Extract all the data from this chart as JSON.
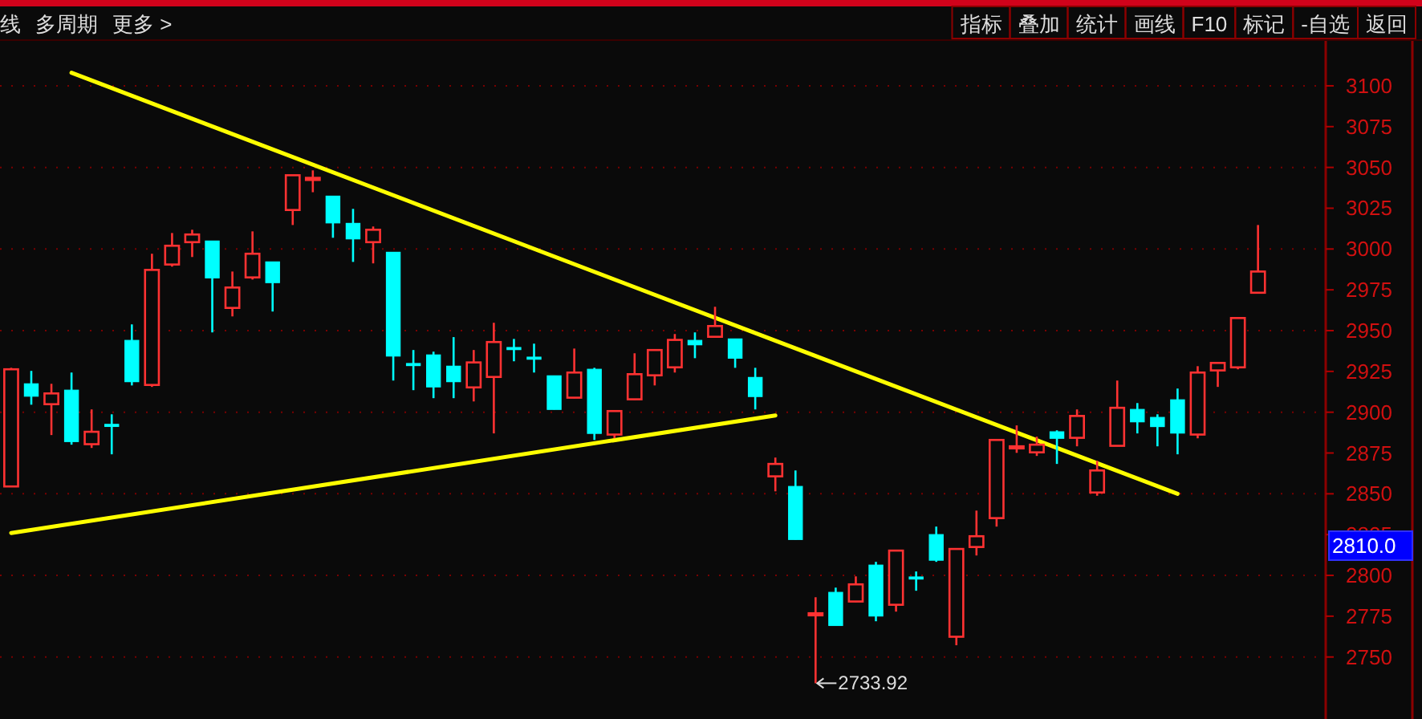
{
  "chart_data": {
    "type": "candlestick",
    "categories": [
      null,
      null,
      null,
      null,
      null,
      null,
      null,
      null,
      null,
      null,
      null,
      null,
      null,
      null,
      null,
      null,
      null,
      null,
      null,
      null,
      null,
      null,
      null,
      null,
      null,
      null,
      null,
      null,
      null,
      null,
      null,
      null,
      null,
      null,
      null,
      null,
      null,
      null,
      null,
      null,
      null,
      null,
      null,
      null,
      null,
      null,
      null,
      null,
      null,
      null,
      null,
      null,
      null,
      null,
      null,
      null,
      null,
      null,
      null,
      null,
      null,
      null,
      null
    ],
    "ohlc": [
      [
        2854.5,
        2927.2,
        2854.5,
        2926.3
      ],
      [
        2917.4,
        2925.3,
        2904.6,
        2909.8
      ],
      [
        2904.9,
        2917.4,
        2886.0,
        2911.5
      ],
      [
        2913.5,
        2924.3,
        2880.1,
        2882.0
      ],
      [
        2880.4,
        2901.7,
        2878.1,
        2888.0
      ],
      [
        2891.9,
        2898.7,
        2874.2,
        2891.5
      ],
      [
        2944.0,
        2953.8,
        2916.4,
        2918.7
      ],
      [
        2916.7,
        2997.1,
        2915.5,
        2987.2
      ],
      [
        2990.5,
        3009.8,
        2989.2,
        3002.0
      ],
      [
        3004.2,
        3011.8,
        2995.1,
        3008.9
      ],
      [
        3004.9,
        3004.9,
        2948.9,
        2982.3
      ],
      [
        2963.9,
        2986.2,
        2958.7,
        2976.4
      ],
      [
        2982.6,
        3010.8,
        2981.3,
        2997.1
      ],
      [
        2992.1,
        2992.1,
        2961.7,
        2979.4
      ],
      [
        3023.9,
        3045.2,
        3014.7,
        3045.2
      ],
      [
        3043.4,
        3048.2,
        3034.8,
        3043.6
      ],
      [
        3032.4,
        3032.4,
        3006.9,
        3016.0
      ],
      [
        3015.7,
        3024.6,
        2992.1,
        3006.2
      ],
      [
        3004.2,
        3013.8,
        2991.2,
        3011.8
      ],
      [
        2998.0,
        2998.0,
        2919.4,
        2934.4
      ],
      [
        2929.2,
        2938.1,
        2913.5,
        2929.0
      ],
      [
        2935.1,
        2937.1,
        2908.6,
        2915.5
      ],
      [
        2928.2,
        2946.0,
        2908.6,
        2918.7
      ],
      [
        2915.2,
        2938.1,
        2906.6,
        2930.5
      ],
      [
        2921.6,
        2954.8,
        2887.0,
        2943.0
      ],
      [
        2939.0,
        2944.9,
        2931.2,
        2938.8
      ],
      [
        2933.1,
        2942.0,
        2924.3,
        2932.9
      ],
      [
        2922.3,
        2922.3,
        2901.7,
        2901.7
      ],
      [
        2908.9,
        2939.0,
        2908.6,
        2924.3
      ],
      [
        2926.3,
        2927.2,
        2883.0,
        2887.0
      ],
      [
        2886.3,
        2900.7,
        2884.0,
        2900.7
      ],
      [
        2907.9,
        2936.1,
        2907.6,
        2923.3
      ],
      [
        2922.6,
        2938.1,
        2916.4,
        2938.1
      ],
      [
        2927.5,
        2947.9,
        2924.3,
        2944.3
      ],
      [
        2944.0,
        2948.9,
        2933.1,
        2941.3
      ],
      [
        2946.2,
        2964.6,
        2945.9,
        2952.8
      ],
      [
        2944.9,
        2944.9,
        2927.2,
        2933.1
      ],
      [
        2921.3,
        2927.2,
        2901.7,
        2909.6
      ],
      [
        2860.7,
        2872.2,
        2851.5,
        2868.3
      ],
      [
        2854.5,
        2864.3,
        2822.0,
        2822.0
      ],
      [
        2776.6,
        2786.6,
        2733.92,
        2776.8
      ],
      [
        2789.6,
        2792.5,
        2769.3,
        2769.3
      ],
      [
        2784.0,
        2799.4,
        2783.7,
        2794.5
      ],
      [
        2806.3,
        2808.3,
        2771.9,
        2775.1
      ],
      [
        2782.0,
        2815.2,
        2777.8,
        2815.2
      ],
      [
        2798.4,
        2802.4,
        2790.6,
        2798.2
      ],
      [
        2825.0,
        2829.9,
        2808.3,
        2809.3
      ],
      [
        2762.4,
        2816.2,
        2757.2,
        2816.2
      ],
      [
        2817.4,
        2839.7,
        2812.2,
        2824.0
      ],
      [
        2835.1,
        2883.0,
        2829.9,
        2883.0
      ],
      [
        2878.9,
        2891.9,
        2875.1,
        2879.1
      ],
      [
        2875.4,
        2885.0,
        2873.2,
        2880.1
      ],
      [
        2888.0,
        2888.9,
        2868.3,
        2884.0
      ],
      [
        2884.3,
        2901.7,
        2879.1,
        2897.7
      ],
      [
        2850.8,
        2870.2,
        2848.8,
        2864.3
      ],
      [
        2879.4,
        2919.4,
        2879.4,
        2902.7
      ],
      [
        2901.7,
        2905.6,
        2887.0,
        2894.1
      ],
      [
        2896.8,
        2898.7,
        2879.1,
        2891.2
      ],
      [
        2907.6,
        2914.5,
        2874.2,
        2887.2
      ],
      [
        2886.3,
        2928.2,
        2884.0,
        2924.3
      ],
      [
        2925.6,
        2930.2,
        2915.5,
        2930.2
      ],
      [
        2927.5,
        2957.7,
        2926.3,
        2957.7
      ],
      [
        2973.2,
        3014.7,
        2973.2,
        2986.2
      ]
    ],
    "colors": [
      "#ff3232",
      "#00ffff",
      "#ff3232",
      "#00ffff",
      "#ff3232",
      "#00ffff",
      "#00ffff",
      "#ff3232",
      "#ff3232",
      "#ff3232",
      "#00ffff",
      "#ff3232",
      "#ff3232",
      "#00ffff",
      "#ff3232",
      "#ff3232",
      "#00ffff",
      "#00ffff",
      "#ff3232",
      "#00ffff",
      "#00ffff",
      "#00ffff",
      "#00ffff",
      "#ff3232",
      "#ff3232",
      "#00ffff",
      "#00ffff",
      "#00ffff",
      "#ff3232",
      "#00ffff",
      "#ff3232",
      "#ff3232",
      "#ff3232",
      "#ff3232",
      "#00ffff",
      "#ff3232",
      "#00ffff",
      "#00ffff",
      "#ff3232",
      "#00ffff",
      "#ff3232",
      "#00ffff",
      "#ff3232",
      "#00ffff",
      "#ff3232",
      "#00ffff",
      "#00ffff",
      "#ff3232",
      "#ff3232",
      "#ff3232",
      "#ff3232",
      "#ff3232",
      "#00ffff",
      "#ff3232",
      "#ff3232",
      "#ff3232",
      "#00ffff",
      "#00ffff",
      "#00ffff",
      "#ff3232",
      "#ff3232",
      "#ff3232",
      "#ff3232"
    ],
    "series": [
      {
        "type": "line",
        "color": "#ffff00",
        "values": [
          null,
          null,
          null,
          3108,
          null,
          null,
          null,
          null,
          null,
          null,
          null,
          null,
          null,
          null,
          null,
          null,
          null,
          null,
          null,
          null,
          null,
          null,
          null,
          null,
          null,
          null,
          null,
          null,
          null,
          null,
          null,
          null,
          null,
          null,
          null,
          null,
          null,
          null,
          null,
          null,
          null,
          null,
          null,
          null,
          null,
          null,
          null,
          null,
          null,
          null,
          null,
          null,
          null,
          null,
          null,
          null,
          null,
          null,
          2850,
          null,
          null,
          null,
          null
        ]
      },
      {
        "type": "line",
        "color": "#ffff00",
        "values": [
          2826,
          null,
          null,
          null,
          null,
          null,
          null,
          null,
          null,
          null,
          null,
          null,
          null,
          null,
          null,
          null,
          null,
          null,
          null,
          null,
          null,
          null,
          null,
          null,
          null,
          null,
          null,
          null,
          null,
          null,
          null,
          null,
          null,
          null,
          null,
          null,
          null,
          null,
          2898,
          null,
          null,
          null,
          null,
          null,
          null,
          null,
          null,
          null,
          null,
          null,
          null,
          null,
          null,
          null,
          null,
          null,
          null,
          null,
          null,
          null,
          null,
          null,
          null
        ]
      }
    ],
    "ylim": [
      2712,
      3128
    ],
    "yticks": [
      2750,
      2775,
      2800,
      2825,
      2850,
      2875,
      2900,
      2925,
      2950,
      2975,
      3000,
      3025,
      3050,
      3075,
      3100
    ],
    "grid": "y",
    "tick_labels": "y",
    "annotations": [
      "线",
      "多周期",
      "更多 >",
      "指标",
      "叠加",
      "统计",
      "画线",
      "F10",
      "标记",
      "-自选",
      "返回",
      "2733.92",
      "2810.0"
    ]
  }
}
